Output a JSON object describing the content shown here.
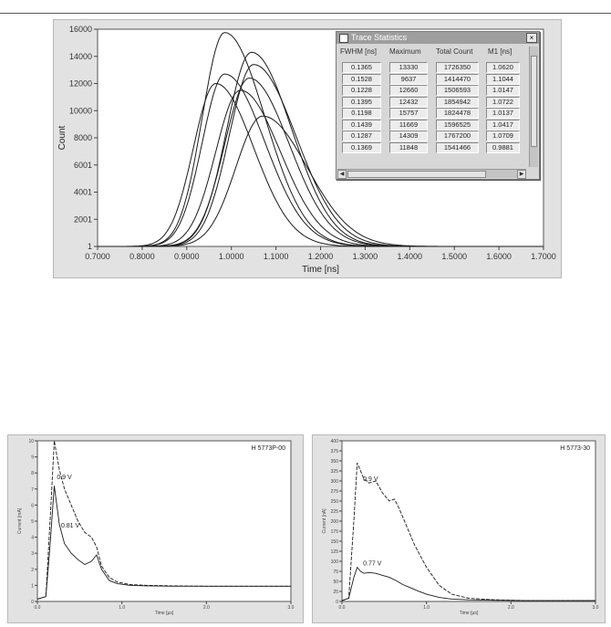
{
  "chart_data": [
    {
      "type": "line",
      "title": "",
      "xlabel": "Time [ns]",
      "ylabel": "Count",
      "xlim": [
        0.7,
        1.7
      ],
      "ylim": [
        1,
        16000
      ],
      "x_ticks": [
        "0.7000",
        "0.8000",
        "0.9000",
        "1.0000",
        "1.1000",
        "1.2000",
        "1.3000",
        "1.4000",
        "1.5000",
        "1.6000",
        "1.7000"
      ],
      "y_ticks": [
        "1",
        "2001",
        "4001",
        "6001",
        "8000",
        "10000",
        "12000",
        "14000",
        "16000"
      ],
      "series": [
        {
          "peak_time": 0.985,
          "peak_count": 15757,
          "sigma_left": 0.05,
          "sigma_right": 0.09
        },
        {
          "peak_time": 0.965,
          "peak_count": 12000,
          "sigma_left": 0.05,
          "sigma_right": 0.085
        },
        {
          "peak_time": 0.985,
          "peak_count": 12700,
          "sigma_left": 0.05,
          "sigma_right": 0.09
        },
        {
          "peak_time": 1.02,
          "peak_count": 11500,
          "sigma_left": 0.055,
          "sigma_right": 0.09
        },
        {
          "peak_time": 1.045,
          "peak_count": 14300,
          "sigma_left": 0.055,
          "sigma_right": 0.09
        },
        {
          "peak_time": 1.05,
          "peak_count": 13400,
          "sigma_left": 0.055,
          "sigma_right": 0.095
        },
        {
          "peak_time": 1.04,
          "peak_count": 12400,
          "sigma_left": 0.055,
          "sigma_right": 0.09
        },
        {
          "peak_time": 1.07,
          "peak_count": 9600,
          "sigma_left": 0.06,
          "sigma_right": 0.1
        }
      ]
    },
    {
      "type": "line",
      "title": "H 5773P-00",
      "xlabel": "Time [µs]",
      "ylabel": "Current [mA]",
      "xlim": [
        0,
        3000
      ],
      "ylim": [
        0,
        10
      ],
      "x_ticks": [
        "0.0",
        "1.0",
        "2.0",
        "3.0"
      ],
      "y_ticks": [
        "0",
        "1",
        "2",
        "3",
        "4",
        "5",
        "6",
        "7",
        "8",
        "9",
        "10"
      ],
      "annotations": [
        "0.9 V",
        "0.81 V"
      ],
      "series": [
        {
          "name": "0.9 V",
          "x": [
            0,
            100,
            150,
            200,
            260,
            320,
            400,
            480,
            560,
            640,
            700,
            760,
            850,
            950,
            1100,
            1300,
            1600,
            2000,
            2500,
            3000
          ],
          "y": [
            0.15,
            0.3,
            5,
            10,
            8.2,
            7.0,
            6.0,
            5.0,
            4.3,
            4.0,
            3.4,
            2.2,
            1.5,
            1.2,
            1.05,
            1.0,
            0.97,
            0.95,
            0.95,
            0.95
          ]
        },
        {
          "name": "0.81 V",
          "x": [
            0,
            100,
            150,
            200,
            260,
            320,
            400,
            480,
            560,
            640,
            700,
            760,
            850,
            950,
            1100,
            1300,
            1600,
            2000,
            2500,
            3000
          ],
          "y": [
            0.15,
            0.3,
            3.5,
            7.2,
            4.8,
            3.6,
            3.0,
            2.6,
            2.3,
            2.5,
            2.9,
            2.0,
            1.3,
            1.1,
            1.0,
            0.97,
            0.95,
            0.95,
            0.95,
            0.95
          ]
        }
      ]
    },
    {
      "type": "line",
      "title": "H 5773-30",
      "xlabel": "Time [µs]",
      "ylabel": "Current [nA]",
      "xlim": [
        0,
        3000
      ],
      "ylim": [
        0,
        400
      ],
      "x_ticks": [
        "0.0",
        "1.0",
        "2.0",
        "3.0"
      ],
      "y_ticks": [
        "0",
        "25",
        "50",
        "75",
        "100",
        "125",
        "150",
        "175",
        "200",
        "225",
        "250",
        "275",
        "300",
        "325",
        "350",
        "375",
        "400"
      ],
      "annotations": [
        "0.9 V",
        "0.77 V"
      ],
      "series": [
        {
          "name": "0.9 V",
          "x": [
            0,
            80,
            140,
            180,
            220,
            260,
            320,
            400,
            480,
            560,
            620,
            680,
            760,
            860,
            1000,
            1150,
            1300,
            1500,
            1800,
            2200,
            2600,
            3000
          ],
          "y": [
            2,
            8,
            200,
            345,
            325,
            305,
            295,
            300,
            270,
            250,
            255,
            230,
            190,
            140,
            85,
            40,
            18,
            8,
            4,
            2,
            2,
            2
          ]
        },
        {
          "name": "0.77 V",
          "x": [
            0,
            80,
            140,
            180,
            220,
            260,
            320,
            400,
            480,
            560,
            640,
            720,
            800,
            900,
            1000,
            1150,
            1300,
            1500,
            1800,
            2200,
            2600,
            3000
          ],
          "y": [
            2,
            8,
            60,
            85,
            75,
            70,
            72,
            70,
            65,
            60,
            52,
            42,
            35,
            26,
            18,
            10,
            6,
            4,
            3,
            2,
            2,
            2
          ]
        }
      ]
    }
  ],
  "trace_window": {
    "title": "Trace Statistics",
    "close_label": "×",
    "headers": [
      "FWHM [ns]",
      "Maximum",
      "Total Count",
      "M1 [ns]"
    ],
    "rows": [
      [
        "0.1365",
        "13330",
        "1726350",
        "1.0620"
      ],
      [
        "0.1528",
        "9637",
        "1414470",
        "1.1044"
      ],
      [
        "0.1228",
        "12660",
        "1506593",
        "1.0147"
      ],
      [
        "0.1395",
        "12432",
        "1854942",
        "1.0722"
      ],
      [
        "0.1198",
        "15757",
        "1824478",
        "1.0137"
      ],
      [
        "0.1439",
        "11669",
        "1596525",
        "1.0417"
      ],
      [
        "0.1287",
        "14309",
        "1767200",
        "1.0709"
      ],
      [
        "0.1369",
        "11848",
        "1541466",
        "0.9881"
      ]
    ]
  }
}
